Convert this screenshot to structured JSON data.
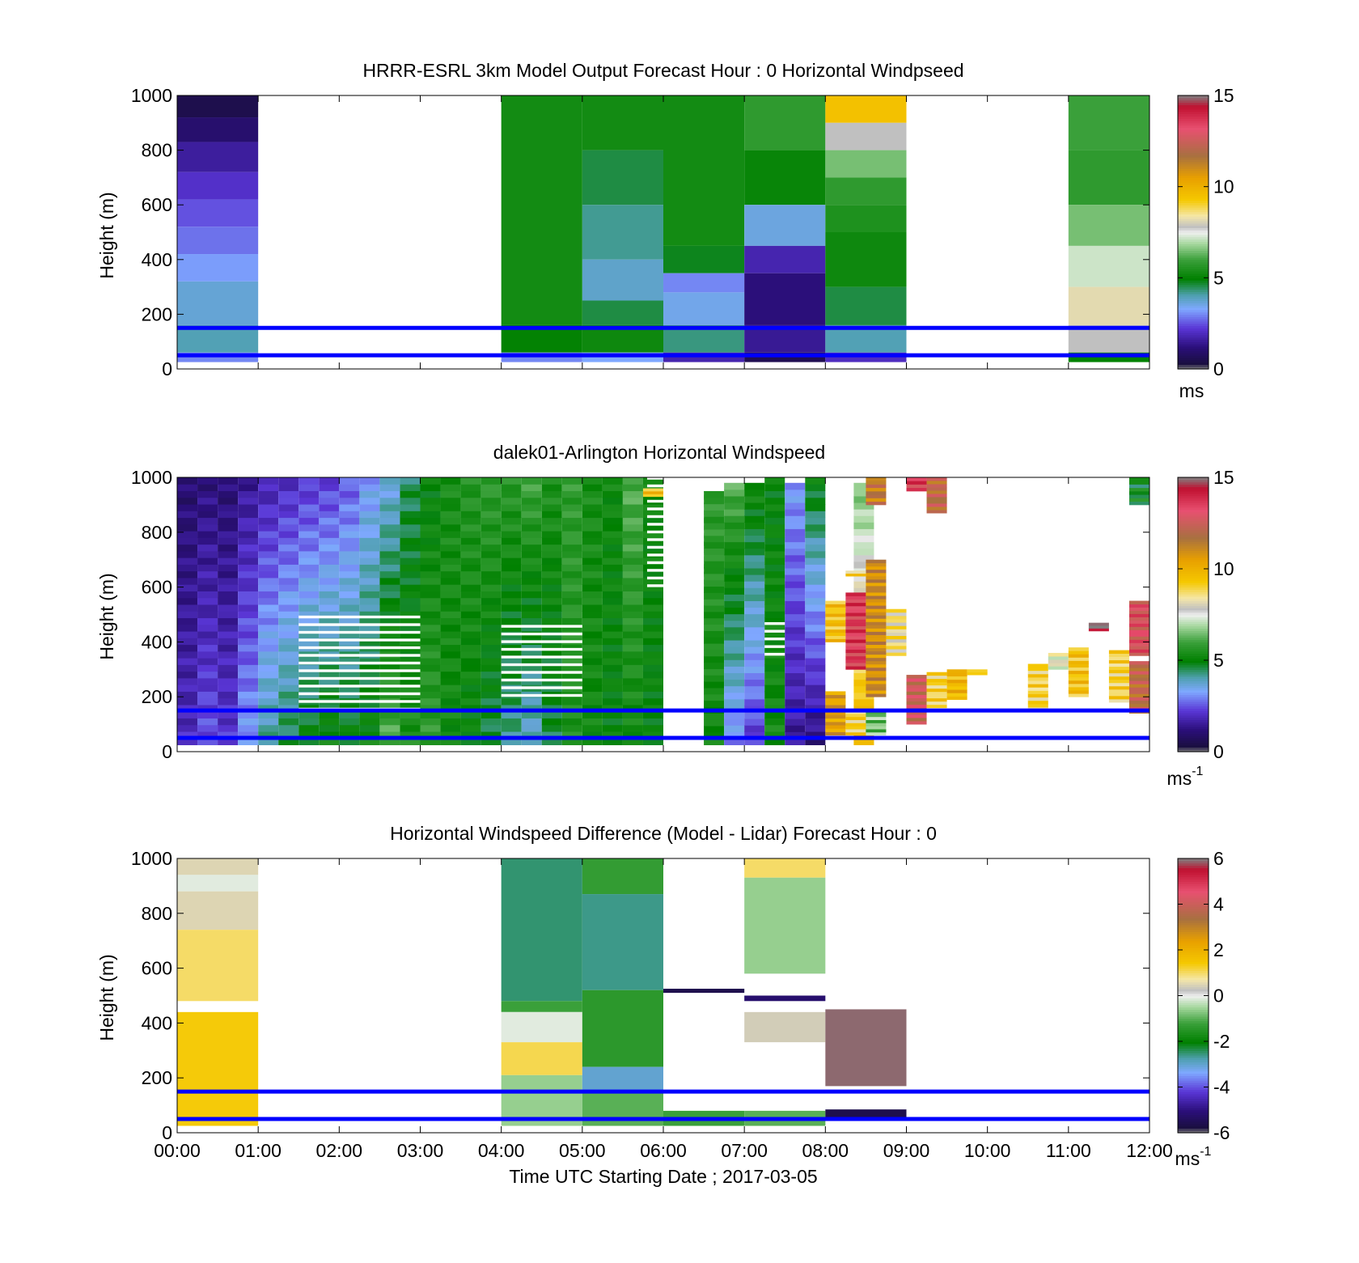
{
  "figure": {
    "xlabel": "Time UTC  Starting Date ; 2017-03-05",
    "x_tick_labels": [
      "00:00",
      "01:00",
      "02:00",
      "03:00",
      "04:00",
      "05:00",
      "06:00",
      "07:00",
      "08:00",
      "09:00",
      "10:00",
      "11:00",
      "12:00"
    ]
  },
  "chart_data": [
    {
      "type": "heatmap",
      "title": "HRRR-ESRL 3km Model Output   Forecast Hour : 0 Horizontal Windpseed",
      "ylabel": "Height (m)",
      "xlim": [
        0,
        12
      ],
      "ylim": [
        0,
        1000
      ],
      "y_ticks": [
        "0",
        "200",
        "400",
        "600",
        "800",
        "1000"
      ],
      "colorbar": {
        "min": 0,
        "max": 15,
        "ticks": [
          "0",
          "5",
          "10",
          "15"
        ],
        "unit": "ms"
      },
      "reference_lines_m": [
        150,
        50
      ],
      "reference_line_color": "#0000ff",
      "x_units": "hours UTC",
      "y_units": "m",
      "value_units": "m/s",
      "cells": [
        {
          "x0": 0,
          "x1": 1,
          "y0": 920,
          "y1": 1000,
          "v": 0.5
        },
        {
          "x0": 0,
          "x1": 1,
          "y0": 830,
          "y1": 920,
          "v": 1.0
        },
        {
          "x0": 0,
          "x1": 1,
          "y0": 720,
          "y1": 830,
          "v": 1.6
        },
        {
          "x0": 0,
          "x1": 1,
          "y0": 620,
          "y1": 720,
          "v": 2.1
        },
        {
          "x0": 0,
          "x1": 1,
          "y0": 520,
          "y1": 620,
          "v": 2.5
        },
        {
          "x0": 0,
          "x1": 1,
          "y0": 420,
          "y1": 520,
          "v": 2.8
        },
        {
          "x0": 0,
          "x1": 1,
          "y0": 320,
          "y1": 420,
          "v": 3.2
        },
        {
          "x0": 0,
          "x1": 1,
          "y0": 160,
          "y1": 320,
          "v": 3.7
        },
        {
          "x0": 0,
          "x1": 1,
          "y0": 60,
          "y1": 160,
          "v": 4.0
        },
        {
          "x0": 0,
          "x1": 1,
          "y0": 25,
          "y1": 60,
          "v": 3.0
        },
        {
          "x0": 4,
          "x1": 5,
          "y0": 160,
          "y1": 1000,
          "v": 5.3
        },
        {
          "x0": 4,
          "x1": 5,
          "y0": 60,
          "y1": 160,
          "v": 5.0
        },
        {
          "x0": 4,
          "x1": 5,
          "y0": 25,
          "y1": 60,
          "v": 3.0
        },
        {
          "x0": 5,
          "x1": 6,
          "y0": 800,
          "y1": 1000,
          "v": 5.3
        },
        {
          "x0": 5,
          "x1": 6,
          "y0": 600,
          "y1": 800,
          "v": 4.6
        },
        {
          "x0": 5,
          "x1": 6,
          "y0": 400,
          "y1": 600,
          "v": 4.2
        },
        {
          "x0": 5,
          "x1": 6,
          "y0": 250,
          "y1": 400,
          "v": 3.8
        },
        {
          "x0": 5,
          "x1": 6,
          "y0": 160,
          "y1": 250,
          "v": 4.6
        },
        {
          "x0": 5,
          "x1": 6,
          "y0": 60,
          "y1": 160,
          "v": 5.2
        },
        {
          "x0": 5,
          "x1": 6,
          "y0": 25,
          "y1": 60,
          "v": 3.3
        },
        {
          "x0": 6,
          "x1": 7,
          "y0": 450,
          "y1": 1000,
          "v": 5.3
        },
        {
          "x0": 6,
          "x1": 7,
          "y0": 350,
          "y1": 450,
          "v": 4.8
        },
        {
          "x0": 6,
          "x1": 7,
          "y0": 280,
          "y1": 350,
          "v": 3.0
        },
        {
          "x0": 6,
          "x1": 7,
          "y0": 160,
          "y1": 280,
          "v": 3.5
        },
        {
          "x0": 6,
          "x1": 7,
          "y0": 60,
          "y1": 160,
          "v": 4.3
        },
        {
          "x0": 6,
          "x1": 7,
          "y0": 25,
          "y1": 60,
          "v": 1.8
        },
        {
          "x0": 7,
          "x1": 8,
          "y0": 800,
          "y1": 1000,
          "v": 5.8
        },
        {
          "x0": 7,
          "x1": 8,
          "y0": 600,
          "y1": 800,
          "v": 5.1
        },
        {
          "x0": 7,
          "x1": 8,
          "y0": 450,
          "y1": 600,
          "v": 3.6
        },
        {
          "x0": 7,
          "x1": 8,
          "y0": 350,
          "y1": 450,
          "v": 1.8
        },
        {
          "x0": 7,
          "x1": 8,
          "y0": 160,
          "y1": 350,
          "v": 1.2
        },
        {
          "x0": 7,
          "x1": 8,
          "y0": 60,
          "y1": 160,
          "v": 1.5
        },
        {
          "x0": 7,
          "x1": 8,
          "y0": 25,
          "y1": 60,
          "v": 0.6
        },
        {
          "x0": 8,
          "x1": 9,
          "y0": 900,
          "y1": 1000,
          "v": 9.5
        },
        {
          "x0": 8,
          "x1": 9,
          "y0": 800,
          "y1": 900,
          "v": 7.8
        },
        {
          "x0": 8,
          "x1": 9,
          "y0": 700,
          "y1": 800,
          "v": 6.5
        },
        {
          "x0": 8,
          "x1": 9,
          "y0": 600,
          "y1": 700,
          "v": 5.8
        },
        {
          "x0": 8,
          "x1": 9,
          "y0": 500,
          "y1": 600,
          "v": 5.5
        },
        {
          "x0": 8,
          "x1": 9,
          "y0": 300,
          "y1": 500,
          "v": 5.2
        },
        {
          "x0": 8,
          "x1": 9,
          "y0": 160,
          "y1": 300,
          "v": 4.6
        },
        {
          "x0": 8,
          "x1": 9,
          "y0": 60,
          "y1": 160,
          "v": 4.0
        },
        {
          "x0": 8,
          "x1": 9,
          "y0": 25,
          "y1": 60,
          "v": 2.0
        },
        {
          "x0": 11,
          "x1": 12,
          "y0": 800,
          "y1": 1000,
          "v": 6.0
        },
        {
          "x0": 11,
          "x1": 12,
          "y0": 600,
          "y1": 800,
          "v": 5.8
        },
        {
          "x0": 11,
          "x1": 12,
          "y0": 450,
          "y1": 600,
          "v": 6.5
        },
        {
          "x0": 11,
          "x1": 12,
          "y0": 300,
          "y1": 450,
          "v": 7.2
        },
        {
          "x0": 11,
          "x1": 12,
          "y0": 160,
          "y1": 300,
          "v": 8.2
        },
        {
          "x0": 11,
          "x1": 12,
          "y0": 60,
          "y1": 160,
          "v": 7.8
        },
        {
          "x0": 11,
          "x1": 12,
          "y0": 25,
          "y1": 60,
          "v": 5.0
        }
      ]
    },
    {
      "type": "heatmap",
      "title": "dalek01-Arlington  Horizontal Windspeed",
      "ylabel": "Height (m)",
      "xlim": [
        0,
        12
      ],
      "ylim": [
        0,
        1000
      ],
      "y_ticks": [
        "0",
        "200",
        "400",
        "600",
        "800",
        "1000"
      ],
      "colorbar": {
        "min": 0,
        "max": 15,
        "ticks": [
          "0",
          "5",
          "10",
          "15"
        ],
        "unit": "ms",
        "unit_exponent": "-1"
      },
      "reference_lines_m": [
        150,
        50
      ],
      "reference_line_color": "#0000ff",
      "x_units": "hours UTC",
      "y_units": "m",
      "value_units": "m/s",
      "columns": [
        {
          "t": 0.0,
          "top": 1000,
          "v_top": 1.0,
          "v_bot": 2.0
        },
        {
          "t": 0.25,
          "top": 1000,
          "v_top": 1.2,
          "v_bot": 2.5
        },
        {
          "t": 0.5,
          "top": 1000,
          "v_top": 1.1,
          "v_bot": 2.2
        },
        {
          "t": 0.75,
          "top": 1000,
          "v_top": 1.5,
          "v_bot": 3.2
        },
        {
          "t": 1.0,
          "top": 1000,
          "v_top": 1.8,
          "v_bot": 4.2
        },
        {
          "t": 1.25,
          "top": 1000,
          "v_top": 2.0,
          "v_bot": 4.6
        },
        {
          "t": 1.5,
          "top": 1000,
          "v_top": 2.2,
          "v_bot": 5.0
        },
        {
          "t": 1.75,
          "top": 1000,
          "v_top": 2.3,
          "v_bot": 5.2
        },
        {
          "t": 2.0,
          "top": 1000,
          "v_top": 2.6,
          "v_bot": 5.0
        },
        {
          "t": 2.25,
          "top": 1000,
          "v_top": 3.2,
          "v_bot": 5.2
        },
        {
          "t": 2.5,
          "top": 1000,
          "v_top": 3.6,
          "v_bot": 6.2
        },
        {
          "t": 2.75,
          "top": 1000,
          "v_top": 4.5,
          "v_bot": 5.5
        },
        {
          "t": 3.0,
          "top": 1000,
          "v_top": 5.0,
          "v_bot": 5.8
        },
        {
          "t": 3.25,
          "top": 1000,
          "v_top": 5.4,
          "v_bot": 5.2
        },
        {
          "t": 3.5,
          "top": 1000,
          "v_top": 5.6,
          "v_bot": 5.0
        },
        {
          "t": 3.75,
          "top": 1000,
          "v_top": 5.8,
          "v_bot": 4.6
        },
        {
          "t": 4.0,
          "top": 1000,
          "v_top": 5.7,
          "v_bot": 4.2
        },
        {
          "t": 4.25,
          "top": 1000,
          "v_top": 6.0,
          "v_bot": 3.8
        },
        {
          "t": 4.5,
          "top": 1000,
          "v_top": 5.5,
          "v_bot": 4.6
        },
        {
          "t": 4.75,
          "top": 1000,
          "v_top": 5.8,
          "v_bot": 5.5
        },
        {
          "t": 5.0,
          "top": 1000,
          "v_top": 5.4,
          "v_bot": 5.2
        },
        {
          "t": 5.25,
          "top": 1000,
          "v_top": 5.2,
          "v_bot": 5.0
        },
        {
          "t": 5.5,
          "top": 1000,
          "v_top": 6.2,
          "v_bot": 5.2
        },
        {
          "t": 5.75,
          "top": 1000,
          "v_top": 5.2,
          "v_bot": 5.0
        },
        {
          "t": 6.5,
          "top": 950,
          "v_top": 5.8,
          "v_bot": 5.2
        },
        {
          "t": 6.75,
          "top": 980,
          "v_top": 6.2,
          "v_bot": 3.0
        },
        {
          "t": 7.0,
          "top": 980,
          "v_top": 5.3,
          "v_bot": 2.2
        },
        {
          "t": 7.25,
          "top": 1000,
          "v_top": 5.0,
          "v_bot": 5.3
        },
        {
          "t": 7.5,
          "top": 980,
          "v_top": 3.2,
          "v_bot": 1.5
        },
        {
          "t": 7.75,
          "top": 1000,
          "v_top": 5.0,
          "v_bot": 1.2
        },
        {
          "t": 8.35,
          "top": 980,
          "v_top": 6.5,
          "v_bot": 10.0
        }
      ],
      "gaps": [
        {
          "x0": 1.5,
          "x1": 3.0,
          "y0": 150,
          "y1": 500
        },
        {
          "x0": 4.0,
          "x1": 5.0,
          "y0": 200,
          "y1": 480
        },
        {
          "x0": 5.8,
          "x1": 6.5,
          "y0": 600,
          "y1": 1000
        },
        {
          "x0": 7.25,
          "x1": 7.5,
          "y0": 350,
          "y1": 480
        }
      ],
      "segments": [
        {
          "x0": 8.0,
          "x1": 8.25,
          "y0": 400,
          "y1": 550,
          "v": 9.5
        },
        {
          "x0": 8.25,
          "x1": 8.5,
          "y0": 300,
          "y1": 580,
          "v": 13.5
        },
        {
          "x0": 8.5,
          "x1": 8.75,
          "y0": 200,
          "y1": 700,
          "v": 11.0
        },
        {
          "x0": 8.75,
          "x1": 9.0,
          "y0": 350,
          "y1": 520,
          "v": 8.5
        },
        {
          "x0": 8.0,
          "x1": 8.25,
          "y0": 60,
          "y1": 220,
          "v": 10.5
        },
        {
          "x0": 8.25,
          "x1": 8.5,
          "y0": 60,
          "y1": 150,
          "v": 9.0
        },
        {
          "x0": 8.5,
          "x1": 8.75,
          "y0": 60,
          "y1": 150,
          "v": 6.5
        },
        {
          "x0": 9.0,
          "x1": 9.25,
          "y0": 100,
          "y1": 280,
          "v": 12.5
        },
        {
          "x0": 9.25,
          "x1": 9.5,
          "y0": 160,
          "y1": 290,
          "v": 9.0
        },
        {
          "x0": 9.5,
          "x1": 9.75,
          "y0": 190,
          "y1": 300,
          "v": 9.8
        },
        {
          "x0": 9.75,
          "x1": 10.0,
          "y0": 280,
          "y1": 300,
          "v": 9.5
        },
        {
          "x0": 10.5,
          "x1": 10.75,
          "y0": 150,
          "y1": 320,
          "v": 9.0
        },
        {
          "x0": 10.75,
          "x1": 11.0,
          "y0": 300,
          "y1": 360,
          "v": 7.8
        },
        {
          "x0": 11.0,
          "x1": 11.25,
          "y0": 200,
          "y1": 380,
          "v": 9.5
        },
        {
          "x0": 11.25,
          "x1": 11.5,
          "y0": 440,
          "y1": 470,
          "v": 15.0
        },
        {
          "x0": 11.5,
          "x1": 11.75,
          "y0": 180,
          "y1": 370,
          "v": 9.0
        },
        {
          "x0": 11.75,
          "x1": 12.0,
          "y0": 140,
          "y1": 330,
          "v": 12.0
        },
        {
          "x0": 11.75,
          "x1": 12.0,
          "y0": 350,
          "y1": 550,
          "v": 13.0
        },
        {
          "x0": 8.5,
          "x1": 8.75,
          "y0": 900,
          "y1": 1000,
          "v": 11.5
        },
        {
          "x0": 9.25,
          "x1": 9.5,
          "y0": 870,
          "y1": 1000,
          "v": 12.0
        },
        {
          "x0": 9.0,
          "x1": 9.25,
          "y0": 950,
          "y1": 1000,
          "v": 13.5
        },
        {
          "x0": 11.75,
          "x1": 12.0,
          "y0": 900,
          "y1": 1000,
          "v": 5.0
        },
        {
          "x0": 5.75,
          "x1": 6.0,
          "y0": 930,
          "y1": 960,
          "v": 9.5
        },
        {
          "x0": 8.25,
          "x1": 8.5,
          "y0": 640,
          "y1": 660,
          "v": 9.0
        }
      ]
    },
    {
      "type": "heatmap",
      "title": "Horizontal Windspeed Difference (Model - Lidar) Forecast Hour : 0",
      "ylabel": "Height (m)",
      "xlabel": "Time UTC  Starting Date ; 2017-03-05",
      "xlim": [
        0,
        12
      ],
      "ylim": [
        0,
        1000
      ],
      "y_ticks": [
        "0",
        "200",
        "400",
        "600",
        "800",
        "1000"
      ],
      "colorbar": {
        "min": -6,
        "max": 6,
        "ticks": [
          "-6",
          "-4",
          "-2",
          "0",
          "2",
          "4",
          "6"
        ],
        "unit": "ms",
        "unit_exponent": "-1"
      },
      "reference_lines_m": [
        150,
        50
      ],
      "reference_line_color": "#0000ff",
      "x_units": "hours UTC",
      "y_units": "m",
      "value_units": "m/s",
      "cells": [
        {
          "x0": 0,
          "x1": 1,
          "y0": 940,
          "y1": 1000,
          "v": 0.5
        },
        {
          "x0": 0,
          "x1": 1,
          "y0": 880,
          "y1": 940,
          "v": -0.1
        },
        {
          "x0": 0,
          "x1": 1,
          "y0": 740,
          "y1": 880,
          "v": 0.5
        },
        {
          "x0": 0,
          "x1": 1,
          "y0": 480,
          "y1": 740,
          "v": 1.0
        },
        {
          "x0": 0,
          "x1": 1,
          "y0": 440,
          "y1": 480,
          "v": null
        },
        {
          "x0": 0,
          "x1": 1,
          "y0": 25,
          "y1": 440,
          "v": 1.4
        },
        {
          "x0": 4,
          "x1": 5,
          "y0": 480,
          "y1": 1000,
          "v": -2.5
        },
        {
          "x0": 4,
          "x1": 5,
          "y0": 440,
          "y1": 480,
          "v": -1.2
        },
        {
          "x0": 4,
          "x1": 5,
          "y0": 330,
          "y1": 440,
          "v": -0.1
        },
        {
          "x0": 4,
          "x1": 5,
          "y0": 210,
          "y1": 330,
          "v": 1.1
        },
        {
          "x0": 4,
          "x1": 5,
          "y0": 25,
          "y1": 210,
          "v": -0.6
        },
        {
          "x0": 5,
          "x1": 6,
          "y0": 870,
          "y1": 1000,
          "v": -1.3
        },
        {
          "x0": 5,
          "x1": 6,
          "y0": 520,
          "y1": 870,
          "v": -2.6
        },
        {
          "x0": 5,
          "x1": 6,
          "y0": 240,
          "y1": 520,
          "v": -1.4
        },
        {
          "x0": 5,
          "x1": 6,
          "y0": 150,
          "y1": 240,
          "v": -3.0
        },
        {
          "x0": 5,
          "x1": 6,
          "y0": 25,
          "y1": 150,
          "v": -1.0
        },
        {
          "x0": 6,
          "x1": 7,
          "y0": 510,
          "y1": 525,
          "v": -5.6
        },
        {
          "x0": 6,
          "x1": 7,
          "y0": 25,
          "y1": 80,
          "v": -1.2
        },
        {
          "x0": 7,
          "x1": 8,
          "y0": 930,
          "y1": 1000,
          "v": 1.0
        },
        {
          "x0": 7,
          "x1": 8,
          "y0": 580,
          "y1": 930,
          "v": -0.6
        },
        {
          "x0": 7,
          "x1": 8,
          "y0": 480,
          "y1": 500,
          "v": -5.2
        },
        {
          "x0": 7,
          "x1": 8,
          "y0": 330,
          "y1": 440,
          "v": 0.4
        },
        {
          "x0": 7,
          "x1": 8,
          "y0": 25,
          "y1": 80,
          "v": -1.0
        },
        {
          "x0": 8,
          "x1": 9,
          "y0": 170,
          "y1": 450,
          "v": 5.9
        },
        {
          "x0": 8,
          "x1": 9,
          "y0": 50,
          "y1": 85,
          "v": -5.6
        }
      ]
    }
  ]
}
